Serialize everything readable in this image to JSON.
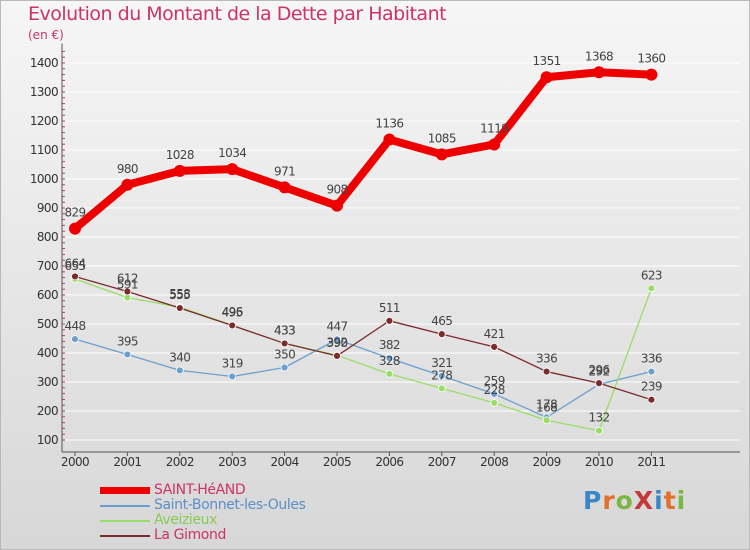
{
  "title": "Evolution du Montant de la Dette par Habitant",
  "unit": "(en €)",
  "logo": {
    "text": "ProXiti",
    "letter_colors": [
      "#3a87c8",
      "#e0702b",
      "#7bb542",
      "#c23a3a",
      "#3a87c8",
      "#e0702b",
      "#7bb542"
    ]
  },
  "colors": {
    "title": "#cc3366",
    "grid": "#ffffff",
    "axis": "#555555"
  },
  "chart_data": {
    "type": "line",
    "title": "Evolution du Montant de la Dette par Habitant",
    "ylabel": "(en €)",
    "xlabel": "",
    "x": [
      "2000",
      "2001",
      "2002",
      "2003",
      "2004",
      "2005",
      "2006",
      "2007",
      "2008",
      "2009",
      "2010",
      "2011"
    ],
    "yticks": [
      100,
      200,
      300,
      400,
      500,
      600,
      700,
      800,
      900,
      1000,
      1100,
      1200,
      1300,
      1400
    ],
    "ylim": [
      100,
      1450
    ],
    "grid": "horizontal",
    "legend_position": "bottom-left",
    "series": [
      {
        "name": "SAINT-HéAND",
        "color": "#ee0000",
        "width": 8,
        "values": [
          829,
          980,
          1028,
          1034,
          971,
          908,
          1136,
          1085,
          1119,
          1351,
          1368,
          1360
        ],
        "labels": [
          "829",
          "980",
          "1028",
          "1034",
          "971",
          "908",
          "1136",
          "1085",
          "1119",
          "1351",
          "1368",
          "1360"
        ]
      },
      {
        "name": "Saint-Bonnet-les-Oules",
        "color": "#6b9fcf",
        "width": 1.3,
        "values": [
          448,
          395,
          340,
          319,
          350,
          447,
          382,
          321,
          259,
          178,
          292,
          336
        ],
        "labels": [
          "448",
          "395",
          "340",
          "319",
          "350",
          "447",
          "382",
          "321",
          "259",
          "178",
          "292",
          "336"
        ]
      },
      {
        "name": "Aveizieux",
        "color": "#99dd66",
        "width": 1.3,
        "values": [
          655,
          591,
          558,
          496,
          433,
          392,
          328,
          278,
          228,
          168,
          132,
          623
        ],
        "labels": [
          "655",
          "591",
          "558",
          "496",
          "433",
          "392",
          "328",
          "278",
          "228",
          "168",
          "132",
          "623"
        ]
      },
      {
        "name": "La Gimond",
        "color": "#7a2b2b",
        "width": 1.3,
        "values": [
          664,
          612,
          555,
          495,
          433,
          390,
          511,
          465,
          421,
          336,
          296,
          239
        ],
        "labels": [
          "664",
          "612",
          "555",
          "495",
          "433",
          "390",
          "511",
          "465",
          "421",
          "336",
          "296",
          "239"
        ]
      }
    ]
  }
}
